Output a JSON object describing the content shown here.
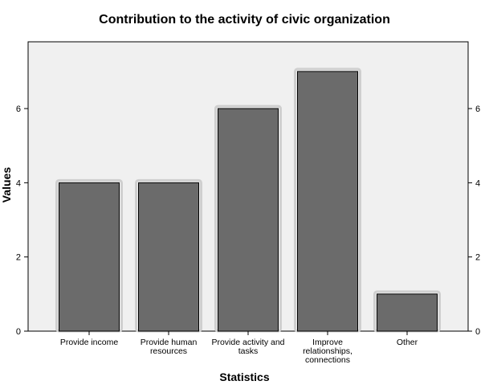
{
  "chart_data": {
    "type": "bar",
    "title": "Contribution to the activity of civic organization",
    "xlabel": "Statistics",
    "ylabel": "Values",
    "categories": [
      "Provide income",
      "Provide human resources",
      "Provide activity and tasks",
      "Improve relationships, connections",
      "Other"
    ],
    "category_lines": [
      [
        "Provide income"
      ],
      [
        "Provide human",
        "resources"
      ],
      [
        "Provide activity and",
        "tasks"
      ],
      [
        "Improve",
        "relationships,",
        "connections"
      ],
      [
        "Other"
      ]
    ],
    "values": [
      4,
      4,
      6,
      7,
      1
    ],
    "yticks": [
      0,
      2,
      4,
      6
    ],
    "ylim": [
      0,
      7.8
    ],
    "grid": false,
    "colors": {
      "plot_background": "#f0f0f0",
      "bar_fill": "#6b6b6b",
      "bar_halo": "#cfcfcf",
      "axis": "#000000"
    }
  }
}
